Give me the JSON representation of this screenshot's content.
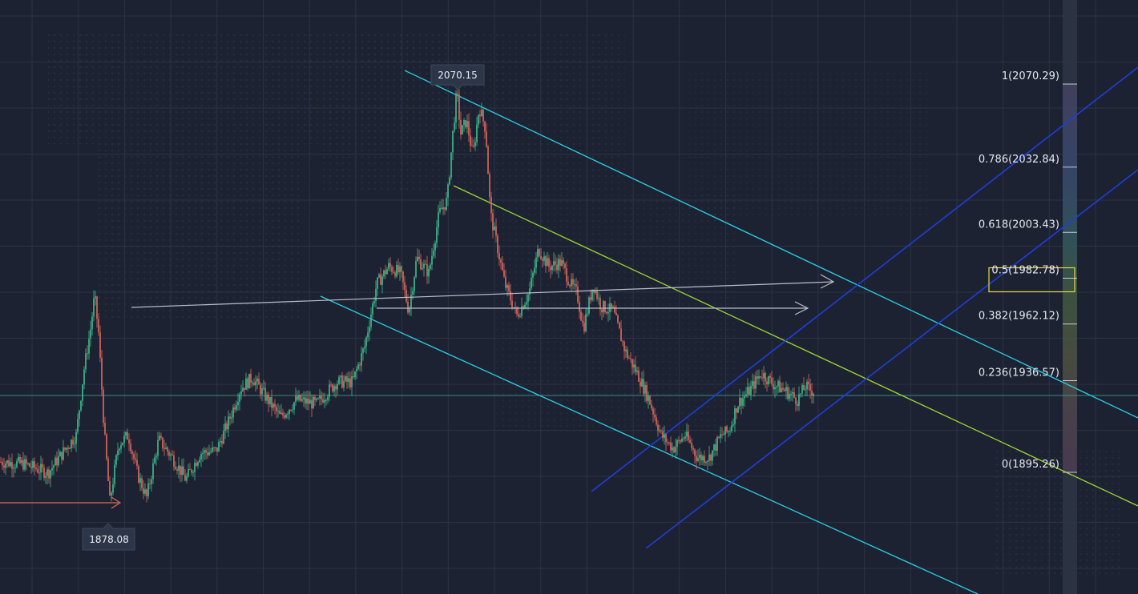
{
  "chart_data": {
    "type": "candlestick",
    "colors": {
      "background": "#1c2232",
      "grid": "#2a3346",
      "up": "#3fbf8f",
      "down": "#e06a5c",
      "channel": "#2bd0e6",
      "midline": "#9ed832",
      "blue_channel": "#1f3fd6",
      "arrow": "#b8bec8",
      "current_price_line": "#3fa39a",
      "fib_highlight": "#e6d84a"
    },
    "ylim": [
      1850,
      2110
    ],
    "price_tags": [
      {
        "id": "high",
        "label": "2070.15",
        "value": 2070.15
      },
      {
        "id": "low",
        "label": "1878.08",
        "value": 1878.08
      }
    ],
    "fib_levels": [
      {
        "ratio": "1",
        "value": 2070.29,
        "label": "1(2070.29)"
      },
      {
        "ratio": "0.786",
        "value": 2032.84,
        "label": "0.786(2032.84)"
      },
      {
        "ratio": "0.618",
        "value": 2003.43,
        "label": "0.618(2003.43)"
      },
      {
        "ratio": "0.5",
        "value": 1982.78,
        "label": "0.5(1982.78)",
        "highlighted": true
      },
      {
        "ratio": "0.382",
        "value": 1962.12,
        "label": "0.382(1962.12)"
      },
      {
        "ratio": "0.236",
        "value": 1936.57,
        "label": "0.236(1936.57)"
      },
      {
        "ratio": "0",
        "value": 1895.26,
        "label": "0(1895.26)"
      }
    ],
    "series": [
      {
        "kind": "price_path",
        "points": [
          [
            0,
            1900
          ],
          [
            30,
            1899
          ],
          [
            60,
            1895
          ],
          [
            80,
            1905
          ],
          [
            95,
            1912
          ],
          [
            105,
            1942
          ],
          [
            113,
            1960
          ],
          [
            118,
            1975
          ],
          [
            123,
            1958
          ],
          [
            130,
            1914
          ],
          [
            137,
            1882
          ],
          [
            148,
            1908
          ],
          [
            160,
            1912
          ],
          [
            172,
            1894
          ],
          [
            183,
            1884
          ],
          [
            198,
            1910
          ],
          [
            215,
            1902
          ],
          [
            232,
            1892
          ],
          [
            250,
            1904
          ],
          [
            270,
            1905
          ],
          [
            285,
            1918
          ],
          [
            300,
            1933
          ],
          [
            315,
            1938
          ],
          [
            330,
            1930
          ],
          [
            350,
            1920
          ],
          [
            370,
            1928
          ],
          [
            395,
            1926
          ],
          [
            420,
            1936
          ],
          [
            440,
            1936
          ],
          [
            455,
            1952
          ],
          [
            470,
            1980
          ],
          [
            485,
            1988
          ],
          [
            500,
            1985
          ],
          [
            510,
            1968
          ],
          [
            520,
            1992
          ],
          [
            535,
            1985
          ],
          [
            548,
            2012
          ],
          [
            558,
            2018
          ],
          [
            565,
            2048
          ],
          [
            570,
            2067
          ],
          [
            575,
            2048
          ],
          [
            582,
            2054
          ],
          [
            590,
            2038
          ],
          [
            598,
            2060
          ],
          [
            606,
            2050
          ],
          [
            612,
            2012
          ],
          [
            620,
            1998
          ],
          [
            630,
            1980
          ],
          [
            645,
            1966
          ],
          [
            660,
            1976
          ],
          [
            672,
            1996
          ],
          [
            685,
            1988
          ],
          [
            700,
            1990
          ],
          [
            712,
            1980
          ],
          [
            720,
            1976
          ],
          [
            728,
            1960
          ],
          [
            740,
            1980
          ],
          [
            750,
            1970
          ],
          [
            765,
            1968
          ],
          [
            780,
            1950
          ],
          [
            795,
            1940
          ],
          [
            810,
            1928
          ],
          [
            825,
            1912
          ],
          [
            840,
            1906
          ],
          [
            855,
            1912
          ],
          [
            870,
            1902
          ],
          [
            885,
            1902
          ],
          [
            900,
            1912
          ],
          [
            910,
            1914
          ],
          [
            920,
            1926
          ],
          [
            935,
            1932
          ],
          [
            950,
            1940
          ],
          [
            965,
            1935
          ],
          [
            980,
            1932
          ],
          [
            995,
            1928
          ],
          [
            1005,
            1934
          ],
          [
            1012,
            1932
          ]
        ]
      }
    ],
    "current_price": 1936.57,
    "x_range": [
      0,
      1015
    ]
  }
}
